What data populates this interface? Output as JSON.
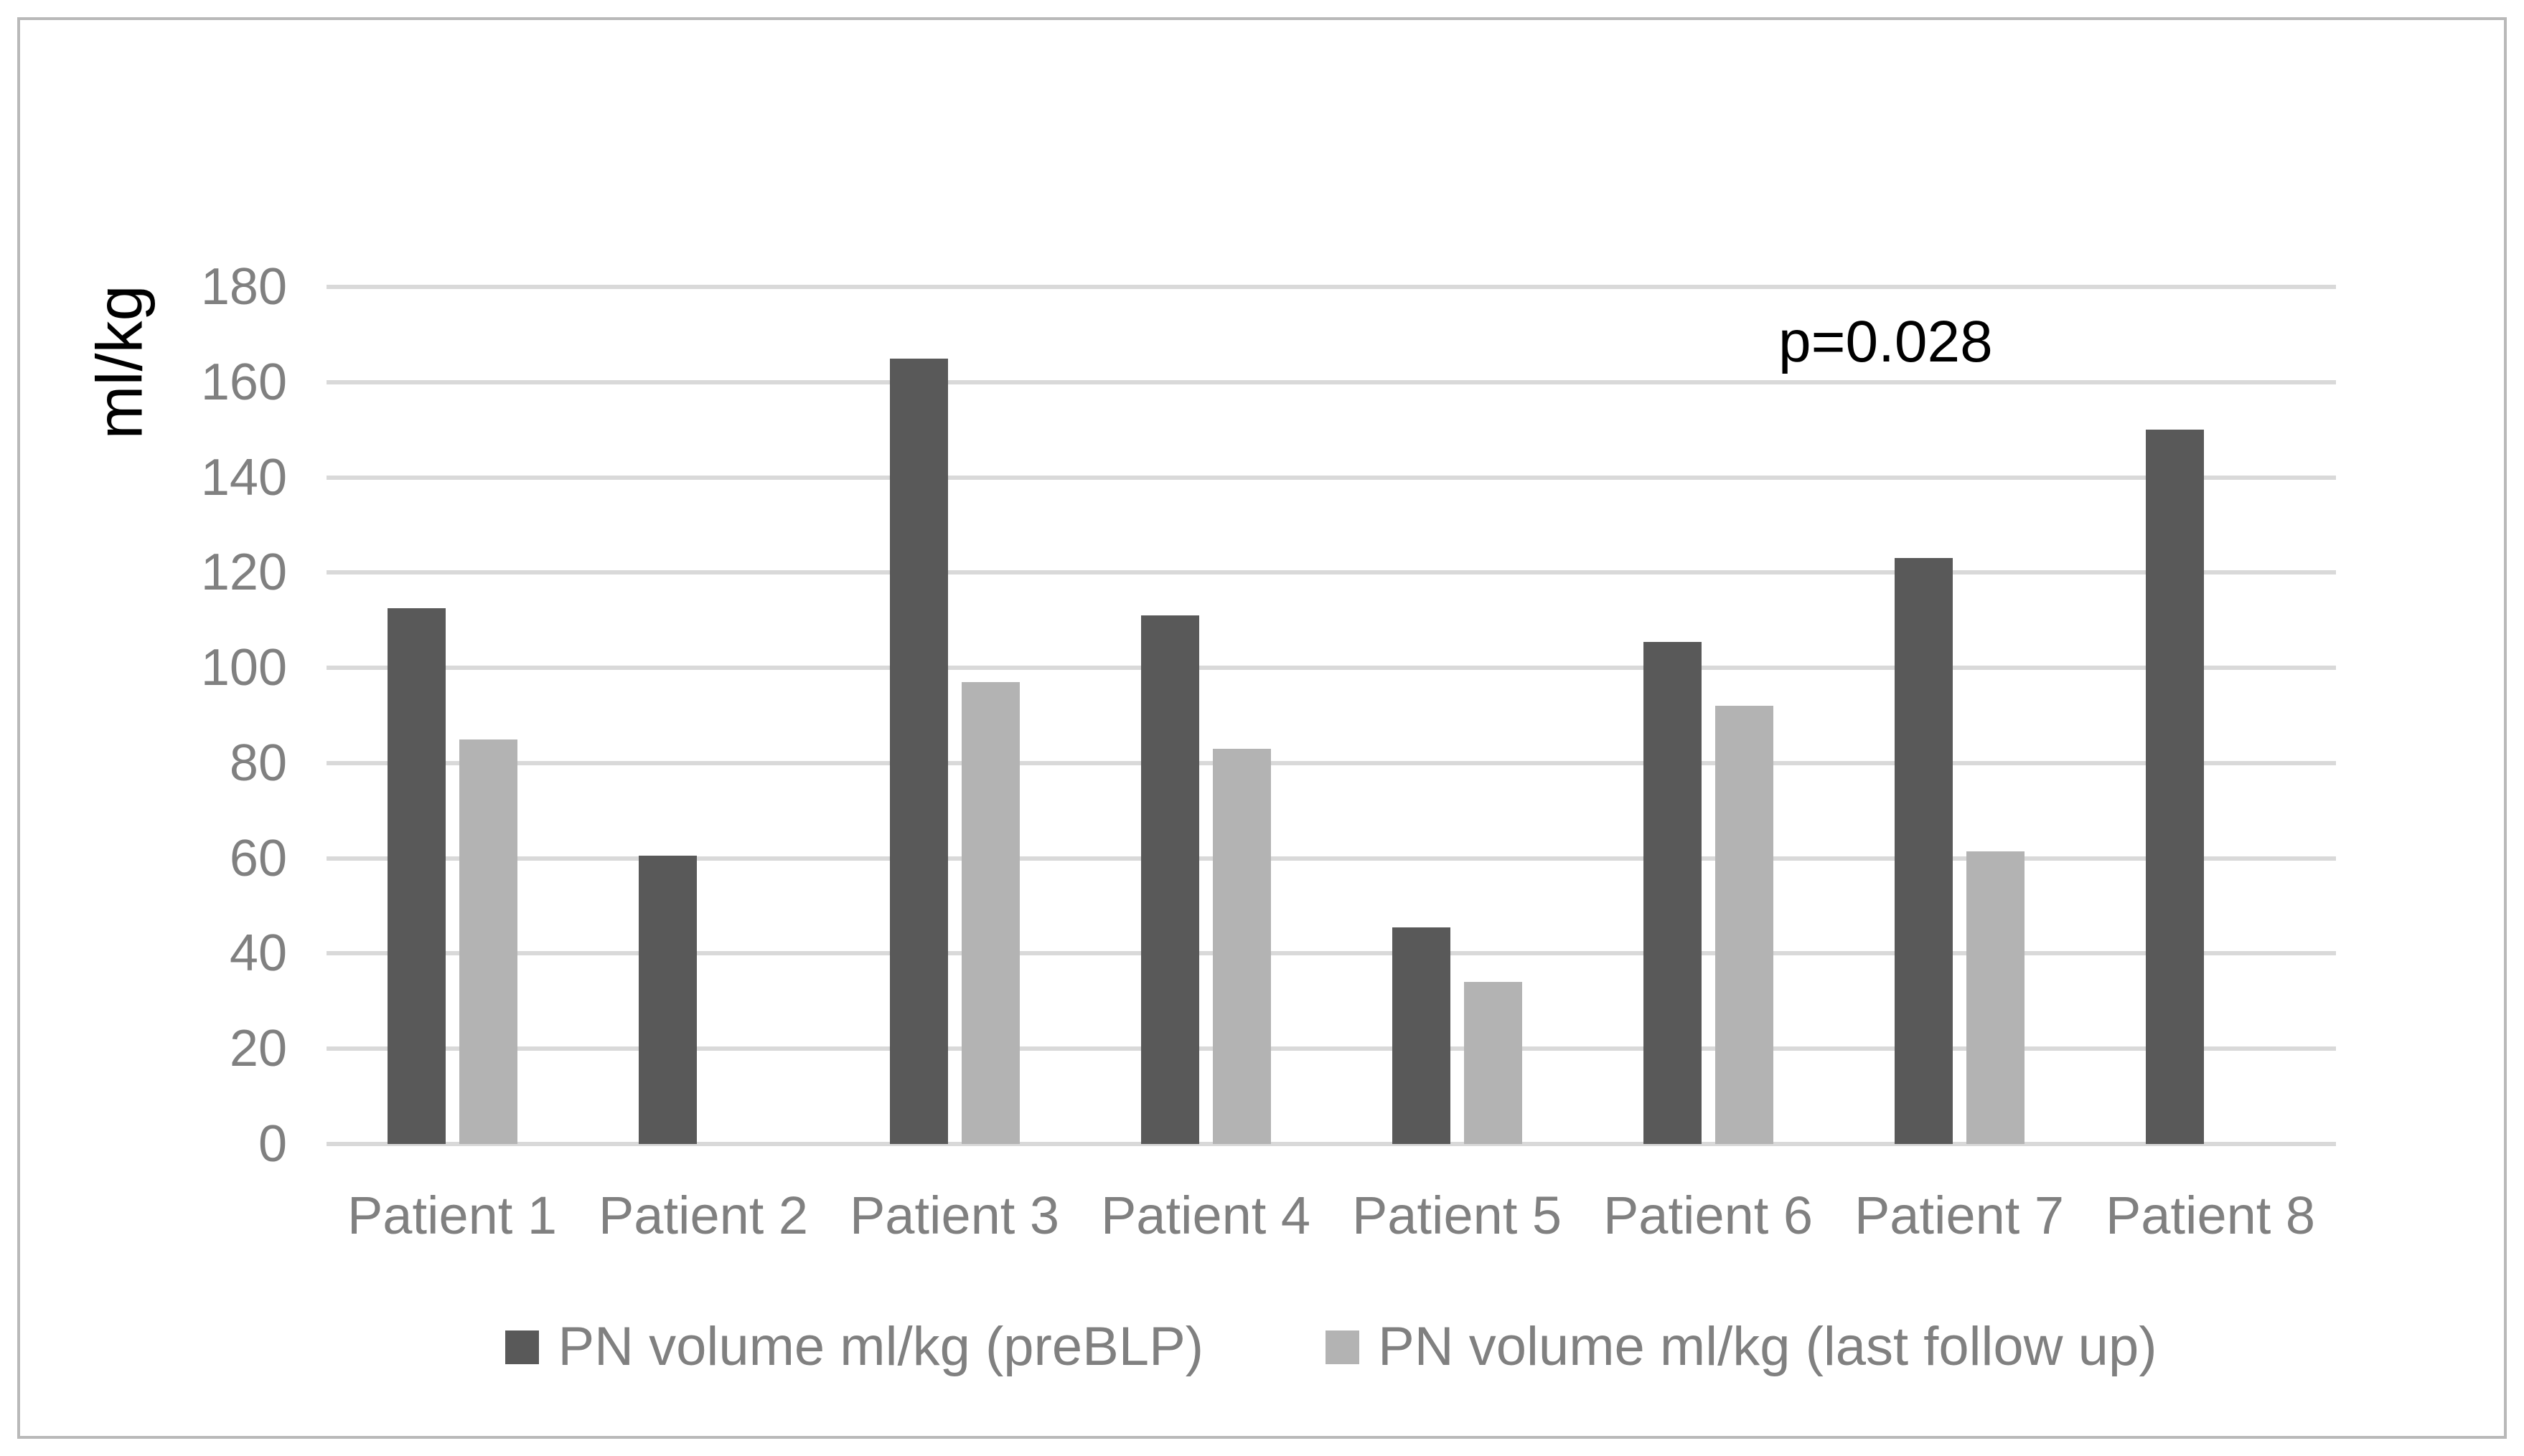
{
  "figure": {
    "background": "#ffffff",
    "border_color": "#b9b9b9"
  },
  "chart_data": {
    "type": "bar",
    "title": "",
    "ylabel": "ml/kg",
    "xlabel": "",
    "ylim": [
      0,
      180
    ],
    "ytick_step": 20,
    "yticks": [
      "0",
      "20",
      "40",
      "60",
      "80",
      "100",
      "120",
      "140",
      "160",
      "180"
    ],
    "grid": "horizontal",
    "gridline_color": "#d9d9d9",
    "axis_text_color": "#808080",
    "annotation": {
      "text": "p=0.028",
      "color": "#000000"
    },
    "legend_position": "bottom",
    "categories": [
      "Patient 1",
      "Patient 2",
      "Patient 3",
      "Patient 4",
      "Patient 5",
      "Patient 6",
      "Patient 7",
      "Patient 8"
    ],
    "series": [
      {
        "name": "PN volume ml/kg (preBLP)",
        "color": "#595959",
        "values": [
          112.5,
          60.5,
          165,
          111,
          45.5,
          105.5,
          123,
          150
        ]
      },
      {
        "name": "PN volume ml/kg (last follow up)",
        "color": "#b3b3b3",
        "values": [
          85,
          0,
          97,
          83,
          34,
          92,
          61.5,
          0
        ]
      }
    ]
  }
}
